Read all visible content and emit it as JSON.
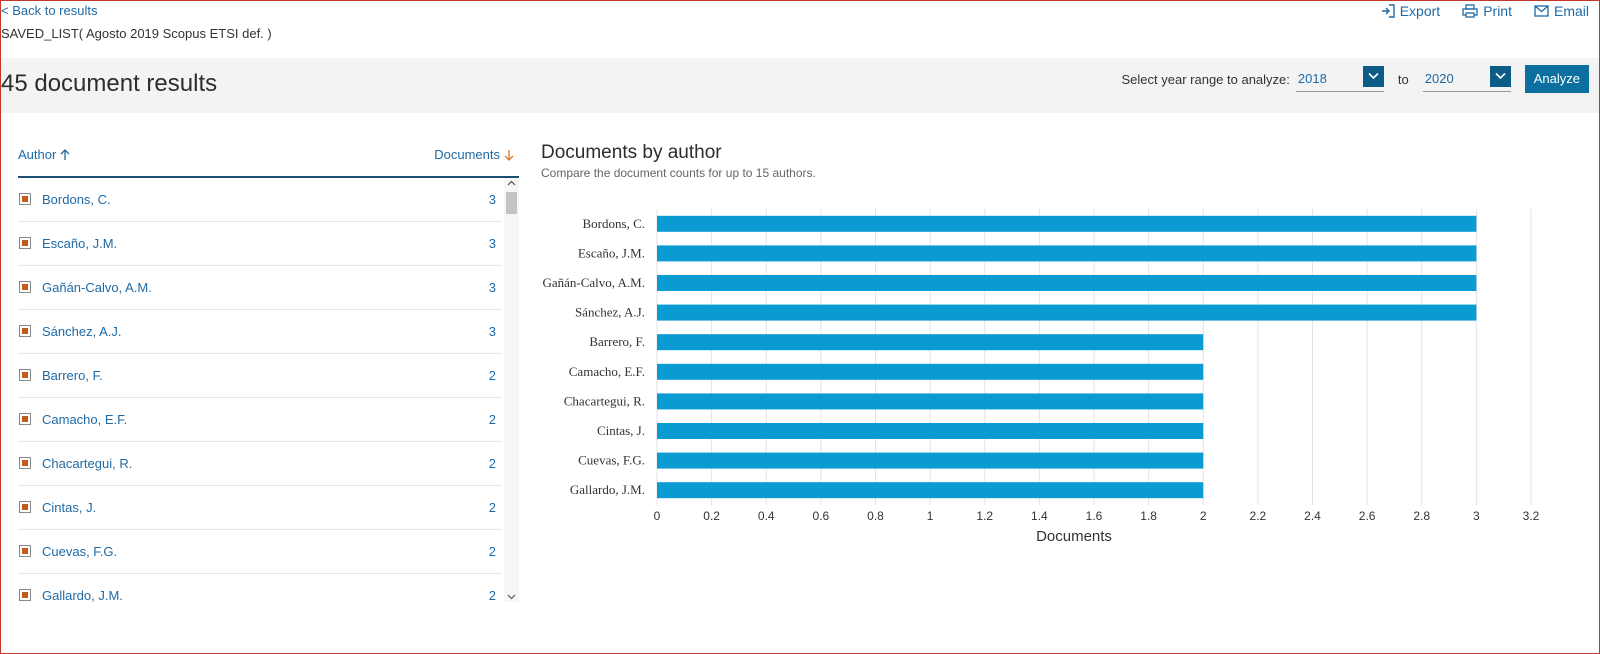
{
  "nav": {
    "back_label": "< Back to results",
    "saved_list": "SAVED_LIST( Agosto 2019 Scopus ETSI def. )"
  },
  "actions": {
    "export": "Export",
    "print": "Print",
    "email": "Email"
  },
  "results": {
    "title": "45 document results"
  },
  "year_range": {
    "label": "Select year range to analyze:",
    "from": "2018",
    "to_label": "to",
    "to": "2020",
    "analyze_label": "Analyze"
  },
  "list": {
    "author_header": "Author",
    "documents_header": "Documents",
    "rows": [
      {
        "name": "Bordons, C.",
        "count": "3"
      },
      {
        "name": "Escaño, J.M.",
        "count": "3"
      },
      {
        "name": "Gañán-Calvo, A.M.",
        "count": "3"
      },
      {
        "name": "Sánchez, A.J.",
        "count": "3"
      },
      {
        "name": "Barrero, F.",
        "count": "2"
      },
      {
        "name": "Camacho, E.F.",
        "count": "2"
      },
      {
        "name": "Chacartegui, R.",
        "count": "2"
      },
      {
        "name": "Cintas, J.",
        "count": "2"
      },
      {
        "name": "Cuevas, F.G.",
        "count": "2"
      },
      {
        "name": "Gallardo, J.M.",
        "count": "2"
      }
    ]
  },
  "chart": {
    "title": "Documents by author",
    "subtitle": "Compare the document counts for up to 15 authors."
  },
  "chart_data": {
    "type": "bar",
    "orientation": "horizontal",
    "categories": [
      "Bordons, C.",
      "Escaño, J.M.",
      "Gañán-Calvo, A.M.",
      "Sánchez, A.J.",
      "Barrero, F.",
      "Camacho, E.F.",
      "Chacartegui, R.",
      "Cintas, J.",
      "Cuevas, F.G.",
      "Gallardo, J.M."
    ],
    "values": [
      3,
      3,
      3,
      3,
      2,
      2,
      2,
      2,
      2,
      2
    ],
    "xlabel": "Documents",
    "ylabel": "",
    "xlim": [
      0,
      3.2
    ],
    "xticks": [
      "0",
      "0.2",
      "0.4",
      "0.6",
      "0.8",
      "1",
      "1.2",
      "1.4",
      "1.6",
      "1.8",
      "2",
      "2.2",
      "2.4",
      "2.6",
      "2.8",
      "3",
      "3.2"
    ],
    "grid": true,
    "bar_color": "#0a9bd3"
  },
  "colors": {
    "accent": "#1f6aa5",
    "bar": "#0a9bd3",
    "checkbox": "#c45a1b",
    "button": "#0b6fa0"
  }
}
